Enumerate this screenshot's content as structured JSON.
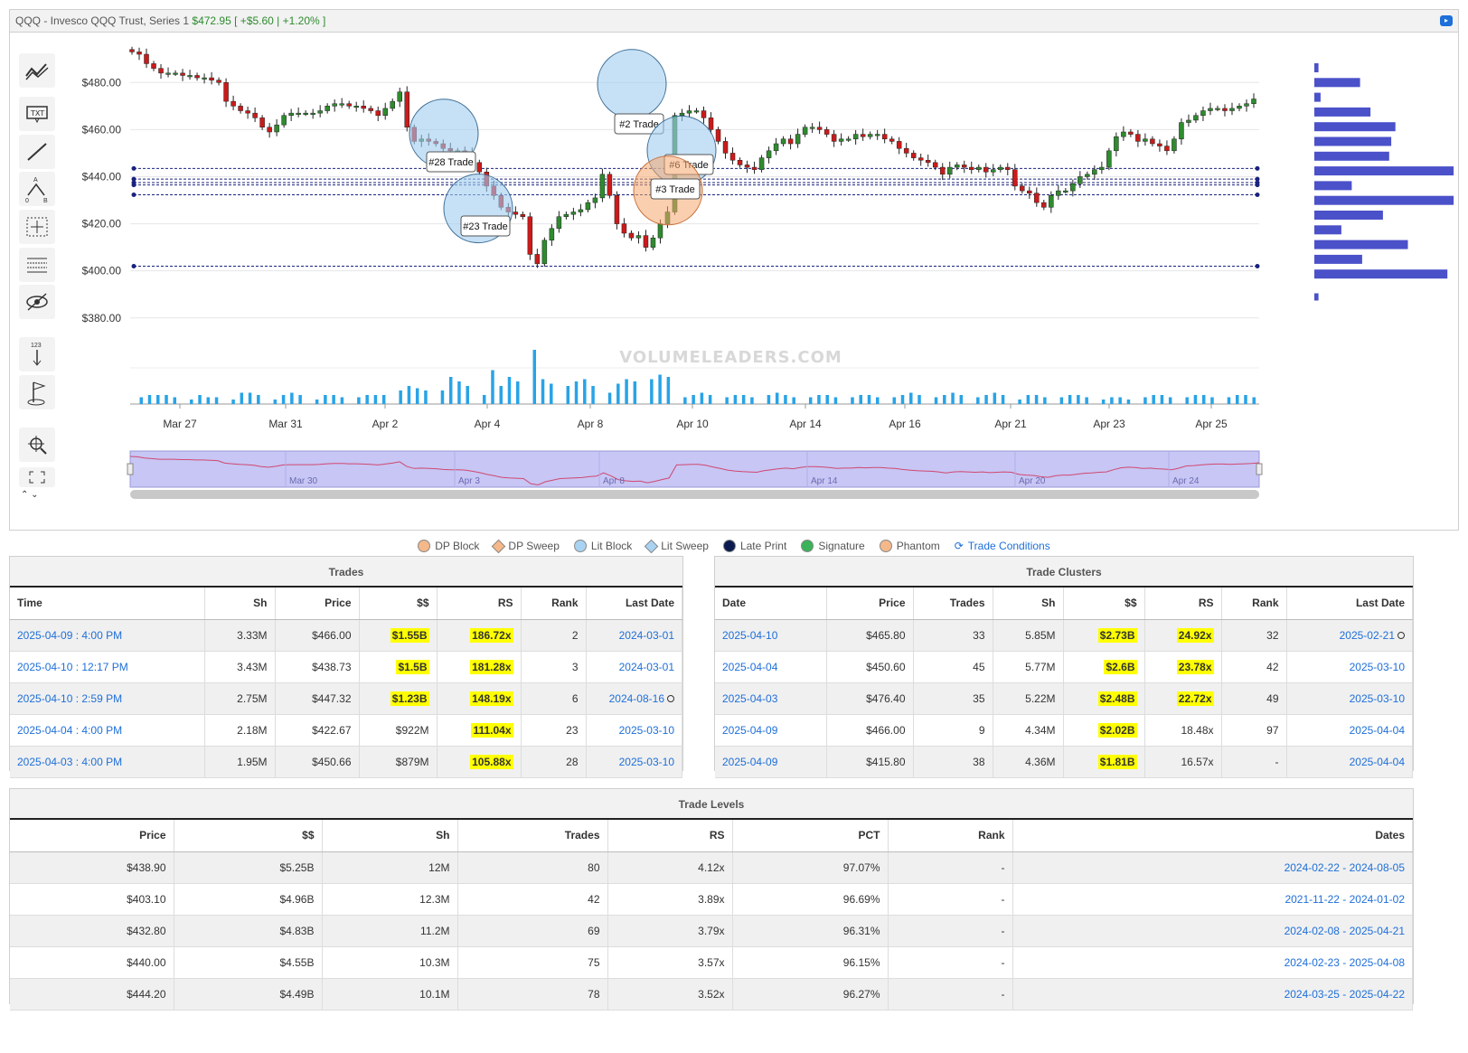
{
  "header": {
    "symbol": "QQQ - Invesco QQQ Trust, Series 1",
    "price": "$472.95",
    "change": "[ +$5.60 | +1.20% ]",
    "expand_icon": "expand-icon"
  },
  "toolbar": {
    "tools": [
      "trend-line-icon",
      "text-tool-icon",
      "line-tool-icon",
      "fibonacci-icon",
      "crosshair-box-icon",
      "horizontal-lines-icon",
      "hide-icon",
      "number-arrow-icon",
      "flag-icon",
      "zoom-tool-icon",
      "fullscreen-icon"
    ]
  },
  "chart_data": {
    "type": "candlestick",
    "y_ticks": [
      "$480.00",
      "$460.00",
      "$440.00",
      "$420.00",
      "$400.00",
      "$380.00"
    ],
    "ylim": [
      373,
      497
    ],
    "x_ticks": [
      "Mar 27",
      "Mar 31",
      "Apr 2",
      "Apr 4",
      "Apr 8",
      "Apr 10",
      "Apr 14",
      "Apr 16",
      "Apr 21",
      "Apr 23",
      "Apr 25"
    ],
    "close_series": [
      493,
      492,
      488,
      486,
      484,
      484,
      484,
      483,
      483,
      482,
      482,
      481,
      480,
      472,
      470,
      468,
      467,
      465,
      461,
      459,
      462,
      466,
      467,
      467,
      467,
      467,
      468,
      470,
      471,
      471,
      470,
      470,
      469,
      468,
      466,
      469,
      472,
      476,
      461,
      455,
      456,
      455,
      454,
      452,
      451,
      451,
      450,
      446,
      442,
      436,
      432,
      427,
      425,
      424,
      423,
      407,
      403,
      413,
      418,
      423,
      424,
      425,
      426,
      429,
      431,
      441,
      432,
      420,
      416,
      414,
      415,
      410,
      414,
      420,
      425,
      466,
      467,
      468,
      468,
      465,
      460,
      455,
      450,
      447,
      445,
      444,
      443,
      448,
      451,
      454,
      456,
      454,
      458,
      461,
      461,
      460,
      458,
      455,
      456,
      456,
      458,
      457,
      458,
      458,
      456,
      455,
      452,
      450,
      448,
      447,
      446,
      444,
      441,
      444,
      445,
      444,
      443,
      444,
      442,
      443,
      444,
      443,
      436,
      434,
      433,
      429,
      427,
      432,
      434,
      434,
      437,
      440,
      441,
      443,
      444,
      451,
      457,
      459,
      458,
      455,
      456,
      454,
      453,
      451,
      456,
      463,
      464,
      466,
      468,
      469,
      469,
      468,
      469,
      470,
      471,
      473
    ],
    "volume_series": [
      3,
      4,
      4,
      4,
      3,
      0,
      2,
      4,
      3,
      3,
      0,
      2,
      5,
      5,
      4,
      0,
      2,
      4,
      5,
      4,
      0,
      2,
      4,
      4,
      3,
      0,
      3,
      4,
      4,
      4,
      0,
      6,
      8,
      7,
      6,
      0,
      6,
      12,
      10,
      8,
      0,
      4,
      15,
      8,
      12,
      10,
      0,
      24,
      11,
      9,
      0,
      8,
      10,
      11,
      8,
      0,
      5,
      9,
      11,
      10,
      0,
      11,
      13,
      12,
      0,
      3,
      4,
      5,
      4,
      0,
      3,
      4,
      4,
      3,
      0,
      4,
      5,
      4,
      3,
      0,
      3,
      4,
      4,
      3,
      0,
      3,
      4,
      4,
      3,
      0,
      3,
      4,
      5,
      4,
      0,
      3,
      4,
      5,
      4,
      0,
      3,
      4,
      5,
      4,
      0,
      2,
      4,
      4,
      3,
      0,
      3,
      4,
      4,
      3,
      0,
      2,
      3,
      3,
      2,
      0,
      3,
      4,
      4,
      3,
      0,
      3,
      4,
      4,
      3,
      0,
      3,
      4,
      4,
      3
    ],
    "trade_levels": [
      443.5,
      439,
      437.5,
      436.5,
      432.3,
      402
    ],
    "trade_markers": [
      {
        "label": "#28 Trade",
        "price": 450.66,
        "color": "blue"
      },
      {
        "label": "#23 Trade",
        "price": 422.67,
        "color": "blue"
      },
      {
        "label": "#2 Trade",
        "price": 466.0,
        "color": "blue"
      },
      {
        "label": "#6 Trade",
        "price": 447.32,
        "color": "blue"
      },
      {
        "label": "#3 Trade",
        "price": 438.73,
        "color": "orange"
      }
    ],
    "volume_profile": [
      2,
      22,
      3,
      27,
      39,
      37,
      36,
      67,
      18,
      67,
      33,
      13,
      45,
      23,
      64,
      2
    ],
    "navigator_labels": [
      "Mar 30",
      "Apr 3",
      "Apr 8",
      "Apr 14",
      "Apr 20",
      "Apr 24"
    ],
    "watermark": "VOLUMELEADERS.COM"
  },
  "legend": [
    {
      "label": "DP Block",
      "shape": "dot",
      "color": "#f5b88a"
    },
    {
      "label": "DP Sweep",
      "shape": "dia",
      "color": "#f5b88a"
    },
    {
      "label": "Lit Block",
      "shape": "dot",
      "color": "#a9d3f2"
    },
    {
      "label": "Lit Sweep",
      "shape": "dia",
      "color": "#a9d3f2"
    },
    {
      "label": "Late Print",
      "shape": "dot",
      "color": "#0b1b4f"
    },
    {
      "label": "Signature",
      "shape": "dot",
      "color": "#3cb35a"
    },
    {
      "label": "Phantom",
      "shape": "dot",
      "color": "#f5b88a"
    },
    {
      "label": "Trade Conditions",
      "shape": "link",
      "color": ""
    }
  ],
  "trades": {
    "title": "Trades",
    "headers": [
      "Time",
      "Sh",
      "Price",
      "$$",
      "RS",
      "Rank",
      "Last Date"
    ],
    "rows": [
      [
        "2025-04-09 : 4:00 PM",
        "3.33M",
        "$466.00",
        "$1.55B",
        "186.72x",
        "2",
        "2024-03-01",
        ""
      ],
      [
        "2025-04-10 : 12:17 PM",
        "3.43M",
        "$438.73",
        "$1.5B",
        "181.28x",
        "3",
        "2024-03-01",
        ""
      ],
      [
        "2025-04-10 : 2:59 PM",
        "2.75M",
        "$447.32",
        "$1.23B",
        "148.19x",
        "6",
        "2024-08-16",
        "o"
      ],
      [
        "2025-04-04 : 4:00 PM",
        "2.18M",
        "$422.67",
        "$922M",
        "111.04x",
        "23",
        "2025-03-10",
        ""
      ],
      [
        "2025-04-03 : 4:00 PM",
        "1.95M",
        "$450.66",
        "$879M",
        "105.88x",
        "28",
        "2025-03-10",
        ""
      ]
    ],
    "highlight": [
      [
        1,
        1
      ],
      [
        1,
        1
      ],
      [
        1,
        1
      ],
      [
        0,
        1
      ],
      [
        0,
        1
      ]
    ]
  },
  "clusters": {
    "title": "Trade Clusters",
    "headers": [
      "Date",
      "Price",
      "Trades",
      "Sh",
      "$$",
      "RS",
      "Rank",
      "Last Date"
    ],
    "rows": [
      [
        "2025-04-10",
        "$465.80",
        "33",
        "5.85M",
        "$2.73B",
        "24.92x",
        "32",
        "2025-02-21",
        "o"
      ],
      [
        "2025-04-04",
        "$450.60",
        "45",
        "5.77M",
        "$2.6B",
        "23.78x",
        "42",
        "2025-03-10",
        ""
      ],
      [
        "2025-04-03",
        "$476.40",
        "35",
        "5.22M",
        "$2.48B",
        "22.72x",
        "49",
        "2025-03-10",
        ""
      ],
      [
        "2025-04-09",
        "$466.00",
        "9",
        "4.34M",
        "$2.02B",
        "18.48x",
        "97",
        "2025-04-04",
        ""
      ],
      [
        "2025-04-09",
        "$415.80",
        "38",
        "4.36M",
        "$1.81B",
        "16.57x",
        "-",
        "2025-04-04",
        ""
      ]
    ],
    "highlight": [
      [
        1,
        1
      ],
      [
        1,
        1
      ],
      [
        1,
        1
      ],
      [
        1,
        0
      ],
      [
        1,
        0
      ]
    ]
  },
  "levels": {
    "title": "Trade Levels",
    "headers": [
      "Price",
      "$$",
      "Sh",
      "Trades",
      "RS",
      "PCT",
      "Rank",
      "Dates"
    ],
    "rows": [
      [
        "$438.90",
        "$5.25B",
        "12M",
        "80",
        "4.12x",
        "97.07%",
        "-",
        "2024-02-22 - 2024-08-05"
      ],
      [
        "$403.10",
        "$4.96B",
        "12.3M",
        "42",
        "3.89x",
        "96.69%",
        "-",
        "2021-11-22 - 2024-01-02"
      ],
      [
        "$432.80",
        "$4.83B",
        "11.2M",
        "69",
        "3.79x",
        "96.31%",
        "-",
        "2024-02-08 - 2025-04-21"
      ],
      [
        "$440.00",
        "$4.55B",
        "10.3M",
        "75",
        "3.57x",
        "96.15%",
        "-",
        "2024-02-23 - 2025-04-08"
      ],
      [
        "$444.20",
        "$4.49B",
        "10.1M",
        "78",
        "3.52x",
        "96.27%",
        "-",
        "2024-03-25 - 2025-04-22"
      ]
    ]
  }
}
